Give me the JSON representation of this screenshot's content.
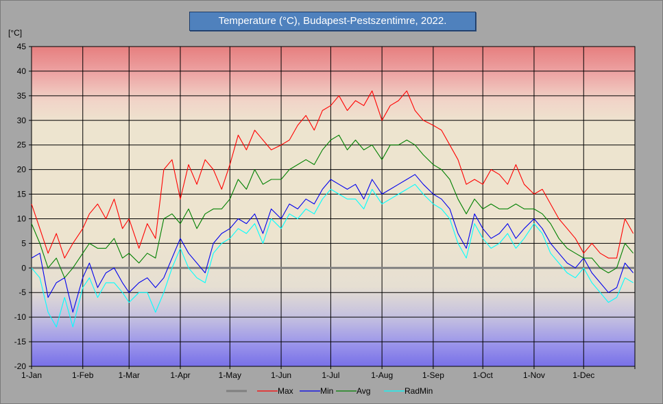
{
  "chart_data": {
    "type": "line",
    "title": "Temperature  (°C), Budapest-Pestszentimre,  2022.",
    "ylabel": "[°C]",
    "xlabel": "",
    "ylim": [
      -20,
      45
    ],
    "xlim": [
      0,
      365
    ],
    "yticks": [
      45,
      40,
      35,
      30,
      25,
      20,
      15,
      10,
      5,
      0,
      -5,
      -10,
      -15,
      -20
    ],
    "xticks": [
      {
        "label": "1-Jan",
        "day": 0
      },
      {
        "label": "1-Feb",
        "day": 31
      },
      {
        "label": "1-Mar",
        "day": 59
      },
      {
        "label": "1-Apr",
        "day": 90
      },
      {
        "label": "1-May",
        "day": 120
      },
      {
        "label": "1-Jun",
        "day": 151
      },
      {
        "label": "1-Jul",
        "day": 181
      },
      {
        "label": "1-Aug",
        "day": 212
      },
      {
        "label": "1-Sep",
        "day": 243
      },
      {
        "label": "1-Oct",
        "day": 273
      },
      {
        "label": "1-Nov",
        "day": 304
      },
      {
        "label": "1-Dec",
        "day": 334
      }
    ],
    "grid": true,
    "legend_position": "bottom",
    "legend": [
      {
        "name": "",
        "color": "#808080"
      },
      {
        "name": "Max",
        "color": "#ff0000"
      },
      {
        "name": "Min",
        "color": "#0000ee"
      },
      {
        "name": "Avg",
        "color": "#008000"
      },
      {
        "name": "RadMin",
        "color": "#00ffff"
      }
    ],
    "zero_line": {
      "value": 0,
      "color": "#808080"
    },
    "series": [
      {
        "name": "Max",
        "color": "#ff0000",
        "x": [
          0,
          5,
          10,
          15,
          20,
          25,
          31,
          35,
          40,
          45,
          50,
          55,
          59,
          65,
          70,
          75,
          80,
          85,
          90,
          95,
          100,
          105,
          110,
          115,
          120,
          125,
          130,
          135,
          140,
          145,
          151,
          156,
          161,
          166,
          171,
          176,
          181,
          186,
          191,
          196,
          201,
          206,
          212,
          217,
          222,
          227,
          232,
          237,
          243,
          248,
          253,
          258,
          263,
          268,
          273,
          278,
          283,
          288,
          293,
          298,
          304,
          309,
          314,
          319,
          324,
          329,
          334,
          339,
          344,
          349,
          354,
          359,
          364
        ],
        "values": [
          13,
          8,
          3,
          7,
          2,
          5,
          8,
          11,
          13,
          10,
          14,
          8,
          10,
          4,
          9,
          6,
          20,
          22,
          14,
          21,
          17,
          22,
          20,
          16,
          21,
          27,
          24,
          28,
          26,
          24,
          25,
          26,
          29,
          31,
          28,
          32,
          33,
          35,
          32,
          34,
          33,
          36,
          30,
          33,
          34,
          36,
          32,
          30,
          29,
          28,
          25,
          22,
          17,
          18,
          17,
          20,
          19,
          17,
          21,
          17,
          15,
          16,
          13,
          10,
          8,
          6,
          3,
          5,
          3,
          2,
          2,
          10,
          7
        ]
      },
      {
        "name": "Min",
        "color": "#0000ee",
        "x": [
          0,
          5,
          10,
          15,
          20,
          25,
          31,
          35,
          40,
          45,
          50,
          55,
          59,
          65,
          70,
          75,
          80,
          85,
          90,
          95,
          100,
          105,
          110,
          115,
          120,
          125,
          130,
          135,
          140,
          145,
          151,
          156,
          161,
          166,
          171,
          176,
          181,
          186,
          191,
          196,
          201,
          206,
          212,
          217,
          222,
          227,
          232,
          237,
          243,
          248,
          253,
          258,
          263,
          268,
          273,
          278,
          283,
          288,
          293,
          298,
          304,
          309,
          314,
          319,
          324,
          329,
          334,
          339,
          344,
          349,
          354,
          359,
          364
        ],
        "values": [
          2,
          3,
          -6,
          -3,
          -2,
          -9,
          -2,
          1,
          -4,
          -1,
          0,
          -3,
          -5,
          -3,
          -2,
          -4,
          -2,
          2,
          6,
          3,
          1,
          -1,
          5,
          7,
          8,
          10,
          9,
          11,
          7,
          12,
          10,
          13,
          12,
          14,
          13,
          16,
          18,
          17,
          16,
          17,
          14,
          18,
          15,
          16,
          17,
          18,
          19,
          17,
          15,
          14,
          12,
          7,
          4,
          11,
          8,
          6,
          7,
          9,
          6,
          8,
          10,
          8,
          5,
          3,
          1,
          0,
          2,
          -1,
          -3,
          -5,
          -4,
          1,
          -1
        ]
      },
      {
        "name": "Avg",
        "color": "#008000",
        "x": [
          0,
          5,
          10,
          15,
          20,
          25,
          31,
          35,
          40,
          45,
          50,
          55,
          59,
          65,
          70,
          75,
          80,
          85,
          90,
          95,
          100,
          105,
          110,
          115,
          120,
          125,
          130,
          135,
          140,
          145,
          151,
          156,
          161,
          166,
          171,
          176,
          181,
          186,
          191,
          196,
          201,
          206,
          212,
          217,
          222,
          227,
          232,
          237,
          243,
          248,
          253,
          258,
          263,
          268,
          273,
          278,
          283,
          288,
          293,
          298,
          304,
          309,
          314,
          319,
          324,
          329,
          334,
          339,
          344,
          349,
          354,
          359,
          364
        ],
        "values": [
          9,
          5,
          0,
          2,
          -2,
          0,
          3,
          5,
          4,
          4,
          6,
          2,
          3,
          1,
          3,
          2,
          10,
          11,
          9,
          12,
          8,
          11,
          12,
          12,
          14,
          18,
          16,
          20,
          17,
          18,
          18,
          20,
          21,
          22,
          21,
          24,
          26,
          27,
          24,
          26,
          24,
          25,
          22,
          25,
          25,
          26,
          25,
          23,
          21,
          20,
          18,
          14,
          11,
          14,
          12,
          13,
          12,
          12,
          13,
          12,
          12,
          11,
          9,
          6,
          4,
          3,
          2,
          2,
          0,
          -1,
          0,
          5,
          3
        ]
      },
      {
        "name": "RadMin",
        "color": "#00ffff",
        "x": [
          0,
          5,
          10,
          15,
          20,
          25,
          31,
          35,
          40,
          45,
          50,
          55,
          59,
          65,
          70,
          75,
          80,
          85,
          90,
          95,
          100,
          105,
          110,
          115,
          120,
          125,
          130,
          135,
          140,
          145,
          151,
          156,
          161,
          166,
          171,
          176,
          181,
          186,
          191,
          196,
          201,
          206,
          212,
          217,
          222,
          227,
          232,
          237,
          243,
          248,
          253,
          258,
          263,
          268,
          273,
          278,
          283,
          288,
          293,
          298,
          304,
          309,
          314,
          319,
          324,
          329,
          334,
          339,
          344,
          349,
          354,
          359,
          364
        ],
        "values": [
          0,
          -2,
          -9,
          -12,
          -6,
          -12,
          -4,
          -2,
          -6,
          -3,
          -3,
          -5,
          -7,
          -5,
          -5,
          -9,
          -5,
          0,
          4,
          0,
          -2,
          -3,
          3,
          5,
          6,
          8,
          7,
          9,
          5,
          10,
          8,
          11,
          10,
          12,
          11,
          14,
          16,
          15,
          14,
          14,
          12,
          16,
          13,
          14,
          15,
          16,
          17,
          15,
          13,
          12,
          10,
          5,
          2,
          9,
          6,
          4,
          5,
          7,
          4,
          6,
          9,
          7,
          3,
          1,
          -1,
          -2,
          0,
          -3,
          -5,
          -7,
          -6,
          -2,
          -3
        ]
      }
    ]
  }
}
